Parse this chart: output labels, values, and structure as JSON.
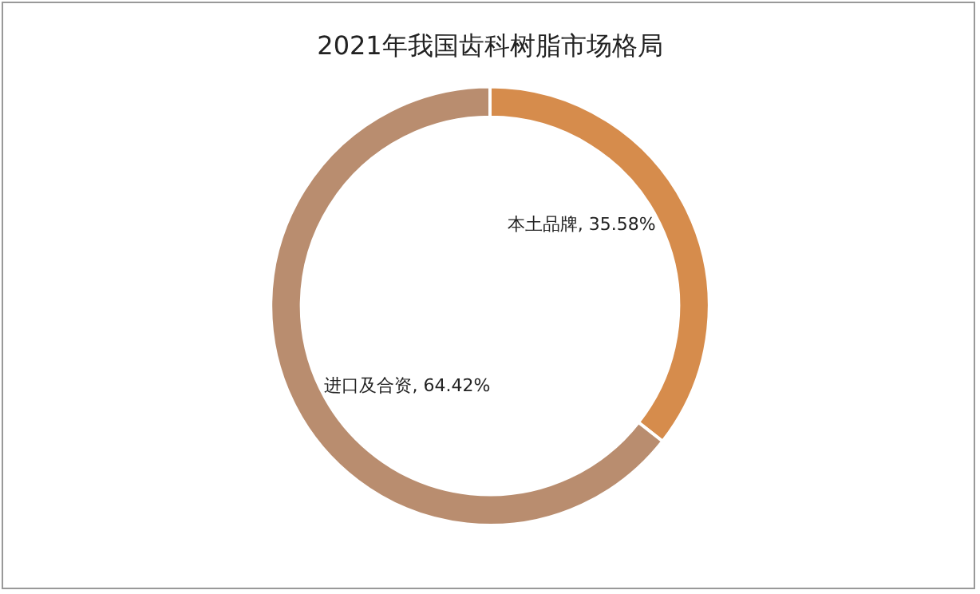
{
  "chart_data": {
    "type": "donut",
    "title": "2021年我国齿科树脂市场格局",
    "categories": [
      "本土品牌",
      "进口及合资"
    ],
    "values": [
      35.58,
      64.42
    ],
    "value_labels": [
      "35.58%",
      "64.42%"
    ],
    "colors": [
      "#d68c4c",
      "#b98d6f"
    ],
    "legend": false
  }
}
